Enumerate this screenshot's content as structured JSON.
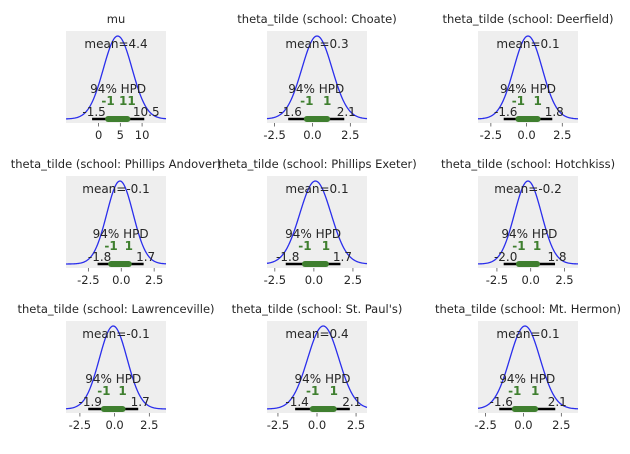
{
  "chart_data": [
    {
      "type": "posterior-density",
      "title": "mu",
      "mean_label": "mean=4.4",
      "hpd_label": "94% HPD",
      "hpd_low": -1.5,
      "hpd_high": 10.5,
      "hpd_low_label": "-1.5",
      "hpd_high_label": "10.5",
      "iqr_low_label": "-1",
      "iqr_high_label": "11",
      "xlim": [
        -7.5,
        15.5
      ],
      "xticks": [
        0,
        5,
        10
      ],
      "xtick_labels": [
        "0",
        "5",
        "10"
      ],
      "mean": 4.4,
      "sd": 3.3,
      "line_color": "#2a2eec",
      "hpd_color": "#000000",
      "iqr_color": "#3f7f2f",
      "background": "#eeeeee"
    },
    {
      "type": "posterior-density",
      "title": "theta_tilde (school: Choate)",
      "mean_label": "mean=0.3",
      "hpd_label": "94% HPD",
      "hpd_low": -1.6,
      "hpd_high": 2.1,
      "hpd_low_label": "-1.6",
      "hpd_high_label": "2.1",
      "iqr_low_label": "-1",
      "iqr_high_label": "1",
      "xlim": [
        -3.0,
        3.6
      ],
      "xticks": [
        -2.5,
        0.0,
        2.5
      ],
      "xtick_labels": [
        "-2.5",
        "0.0",
        "2.5"
      ],
      "mean": 0.3,
      "sd": 1.0,
      "line_color": "#2a2eec",
      "hpd_color": "#000000",
      "iqr_color": "#3f7f2f",
      "background": "#eeeeee"
    },
    {
      "type": "posterior-density",
      "title": "theta_tilde (school: Deerfield)",
      "mean_label": "mean=0.1",
      "hpd_label": "94% HPD",
      "hpd_low": -1.6,
      "hpd_high": 1.8,
      "hpd_low_label": "-1.6",
      "hpd_high_label": "1.8",
      "iqr_low_label": "-1",
      "iqr_high_label": "1",
      "xlim": [
        -3.4,
        3.6
      ],
      "xticks": [
        -2.5,
        0.0,
        2.5
      ],
      "xtick_labels": [
        "-2.5",
        "0.0",
        "2.5"
      ],
      "mean": 0.1,
      "sd": 1.0,
      "line_color": "#2a2eec",
      "hpd_color": "#000000",
      "iqr_color": "#3f7f2f",
      "background": "#eeeeee"
    },
    {
      "type": "posterior-density",
      "title": "theta_tilde (school: Phillips Andover)",
      "mean_label": "mean=-0.1",
      "hpd_label": "94% HPD",
      "hpd_low": -1.8,
      "hpd_high": 1.7,
      "hpd_low_label": "-1.8",
      "hpd_high_label": "1.7",
      "iqr_low_label": "-1",
      "iqr_high_label": "1",
      "xlim": [
        -4.2,
        3.4
      ],
      "xticks": [
        -2.5,
        0.0,
        2.5
      ],
      "xtick_labels": [
        "-2.5",
        "0.0",
        "2.5"
      ],
      "mean": -0.1,
      "sd": 1.0,
      "line_color": "#2a2eec",
      "hpd_color": "#000000",
      "iqr_color": "#3f7f2f",
      "background": "#eeeeee"
    },
    {
      "type": "posterior-density",
      "title": "theta_tilde (school: Phillips Exeter)",
      "mean_label": "mean=0.1",
      "hpd_label": "94% HPD",
      "hpd_low": -1.8,
      "hpd_high": 1.7,
      "hpd_low_label": "-1.8",
      "hpd_high_label": "1.7",
      "iqr_low_label": "-1",
      "iqr_high_label": "1",
      "xlim": [
        -3.0,
        3.4
      ],
      "xticks": [
        -2.5,
        0.0,
        2.5
      ],
      "xtick_labels": [
        "-2.5",
        "0.0",
        "2.5"
      ],
      "mean": 0.1,
      "sd": 1.0,
      "line_color": "#2a2eec",
      "hpd_color": "#000000",
      "iqr_color": "#3f7f2f",
      "background": "#eeeeee"
    },
    {
      "type": "posterior-density",
      "title": "theta_tilde (school: Hotchkiss)",
      "mean_label": "mean=-0.2",
      "hpd_label": "94% HPD",
      "hpd_low": -2.0,
      "hpd_high": 1.8,
      "hpd_low_label": "-2.0",
      "hpd_high_label": "1.8",
      "iqr_low_label": "-1",
      "iqr_high_label": "1",
      "xlim": [
        -3.9,
        3.5
      ],
      "xticks": [
        -2.5,
        0.0,
        2.5
      ],
      "xtick_labels": [
        "-2.5",
        "0.0",
        "2.5"
      ],
      "mean": -0.2,
      "sd": 1.0,
      "line_color": "#2a2eec",
      "hpd_color": "#000000",
      "iqr_color": "#3f7f2f",
      "background": "#eeeeee"
    },
    {
      "type": "posterior-density",
      "title": "theta_tilde (school: Lawrenceville)",
      "mean_label": "mean=-0.1",
      "hpd_label": "94% HPD",
      "hpd_low": -1.9,
      "hpd_high": 1.7,
      "hpd_low_label": "-1.9",
      "hpd_high_label": "1.7",
      "iqr_low_label": "-1",
      "iqr_high_label": "1",
      "xlim": [
        -3.5,
        3.7
      ],
      "xticks": [
        -2.5,
        0.0,
        2.5
      ],
      "xtick_labels": [
        "-2.5",
        "0.0",
        "2.5"
      ],
      "mean": -0.1,
      "sd": 1.0,
      "line_color": "#2a2eec",
      "hpd_color": "#000000",
      "iqr_color": "#3f7f2f",
      "background": "#eeeeee"
    },
    {
      "type": "posterior-density",
      "title": "theta_tilde (school: St. Paul's)",
      "mean_label": "mean=0.4",
      "hpd_label": "94% HPD",
      "hpd_low": -1.4,
      "hpd_high": 2.1,
      "hpd_low_label": "-1.4",
      "hpd_high_label": "2.1",
      "iqr_low_label": "-1",
      "iqr_high_label": "1",
      "xlim": [
        -3.2,
        3.2
      ],
      "xticks": [
        -2.5,
        0.0,
        2.5
      ],
      "xtick_labels": [
        "-2.5",
        "0.0",
        "2.5"
      ],
      "mean": 0.4,
      "sd": 1.0,
      "line_color": "#2a2eec",
      "hpd_color": "#000000",
      "iqr_color": "#3f7f2f",
      "background": "#eeeeee"
    },
    {
      "type": "posterior-density",
      "title": "theta_tilde (school: Mt. Hermon)",
      "mean_label": "mean=0.1",
      "hpd_label": "94% HPD",
      "hpd_low": -1.6,
      "hpd_high": 2.1,
      "hpd_low_label": "-1.6",
      "hpd_high_label": "2.1",
      "iqr_low_label": "-1",
      "iqr_high_label": "1",
      "xlim": [
        -3.0,
        3.6
      ],
      "xticks": [
        -2.5,
        0.0,
        2.5
      ],
      "xtick_labels": [
        "-2.5",
        "0.0",
        "2.5"
      ],
      "mean": 0.1,
      "sd": 1.0,
      "line_color": "#2a2eec",
      "hpd_color": "#000000",
      "iqr_color": "#3f7f2f",
      "background": "#eeeeee"
    }
  ]
}
